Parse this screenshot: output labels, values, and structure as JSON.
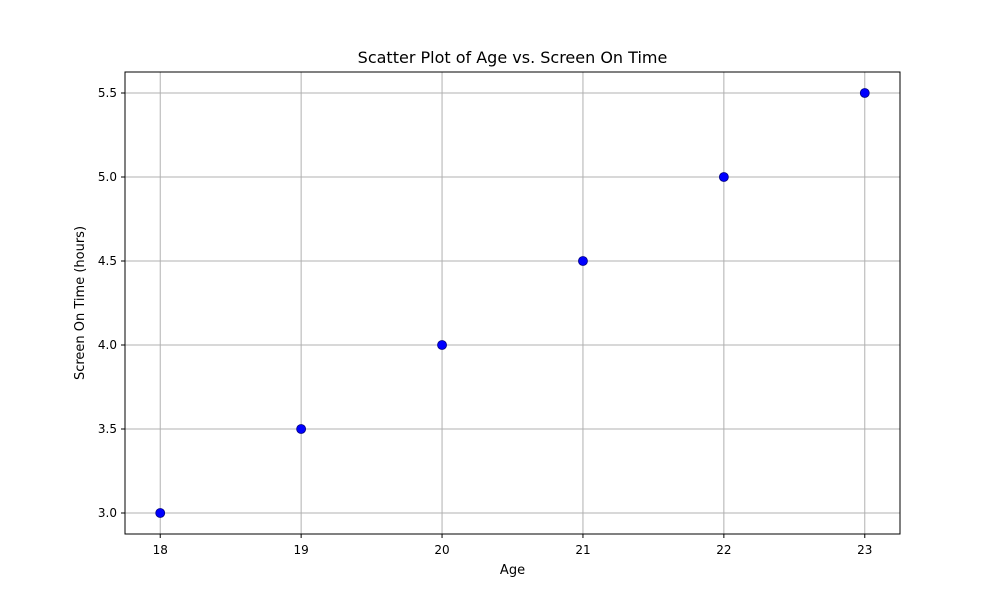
{
  "chart_data": {
    "type": "scatter",
    "title": "Scatter Plot of Age vs. Screen On Time",
    "xlabel": "Age",
    "ylabel": "Screen On Time (hours)",
    "x": [
      18,
      19,
      20,
      21,
      22,
      23
    ],
    "y": [
      3.0,
      3.5,
      4.0,
      4.5,
      5.0,
      5.5
    ],
    "xlim": [
      17.75,
      23.25
    ],
    "ylim": [
      2.875,
      5.625
    ],
    "xticks": [
      "18",
      "19",
      "20",
      "21",
      "22",
      "23"
    ],
    "yticks": [
      "3.0",
      "3.5",
      "4.0",
      "4.5",
      "5.0",
      "5.5"
    ],
    "grid": true,
    "colors": {
      "marker_fill": "#0000ff",
      "marker_edge": "#000080",
      "grid": "#b0b0b0",
      "axes": "#000000"
    }
  }
}
